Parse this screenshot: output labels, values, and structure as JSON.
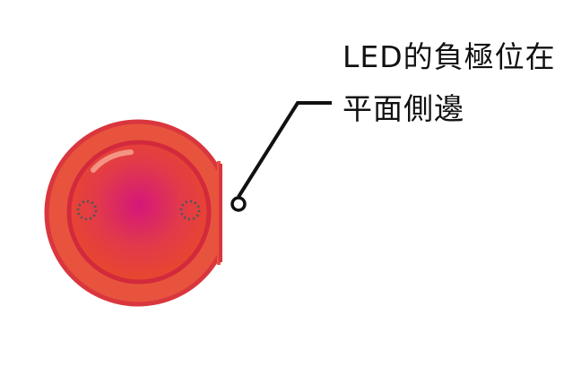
{
  "annotation": {
    "lines": [
      "LED的負極位在",
      "平面側邊"
    ]
  },
  "colors": {
    "led_outer_rim": "#e8533d",
    "led_outer_stroke": "#d9363e",
    "led_center": "#d4177a",
    "led_mid": "#e23a4a",
    "led_edge": "#e8472d",
    "leader_line": "#111111",
    "lead_marker": "#555555"
  }
}
